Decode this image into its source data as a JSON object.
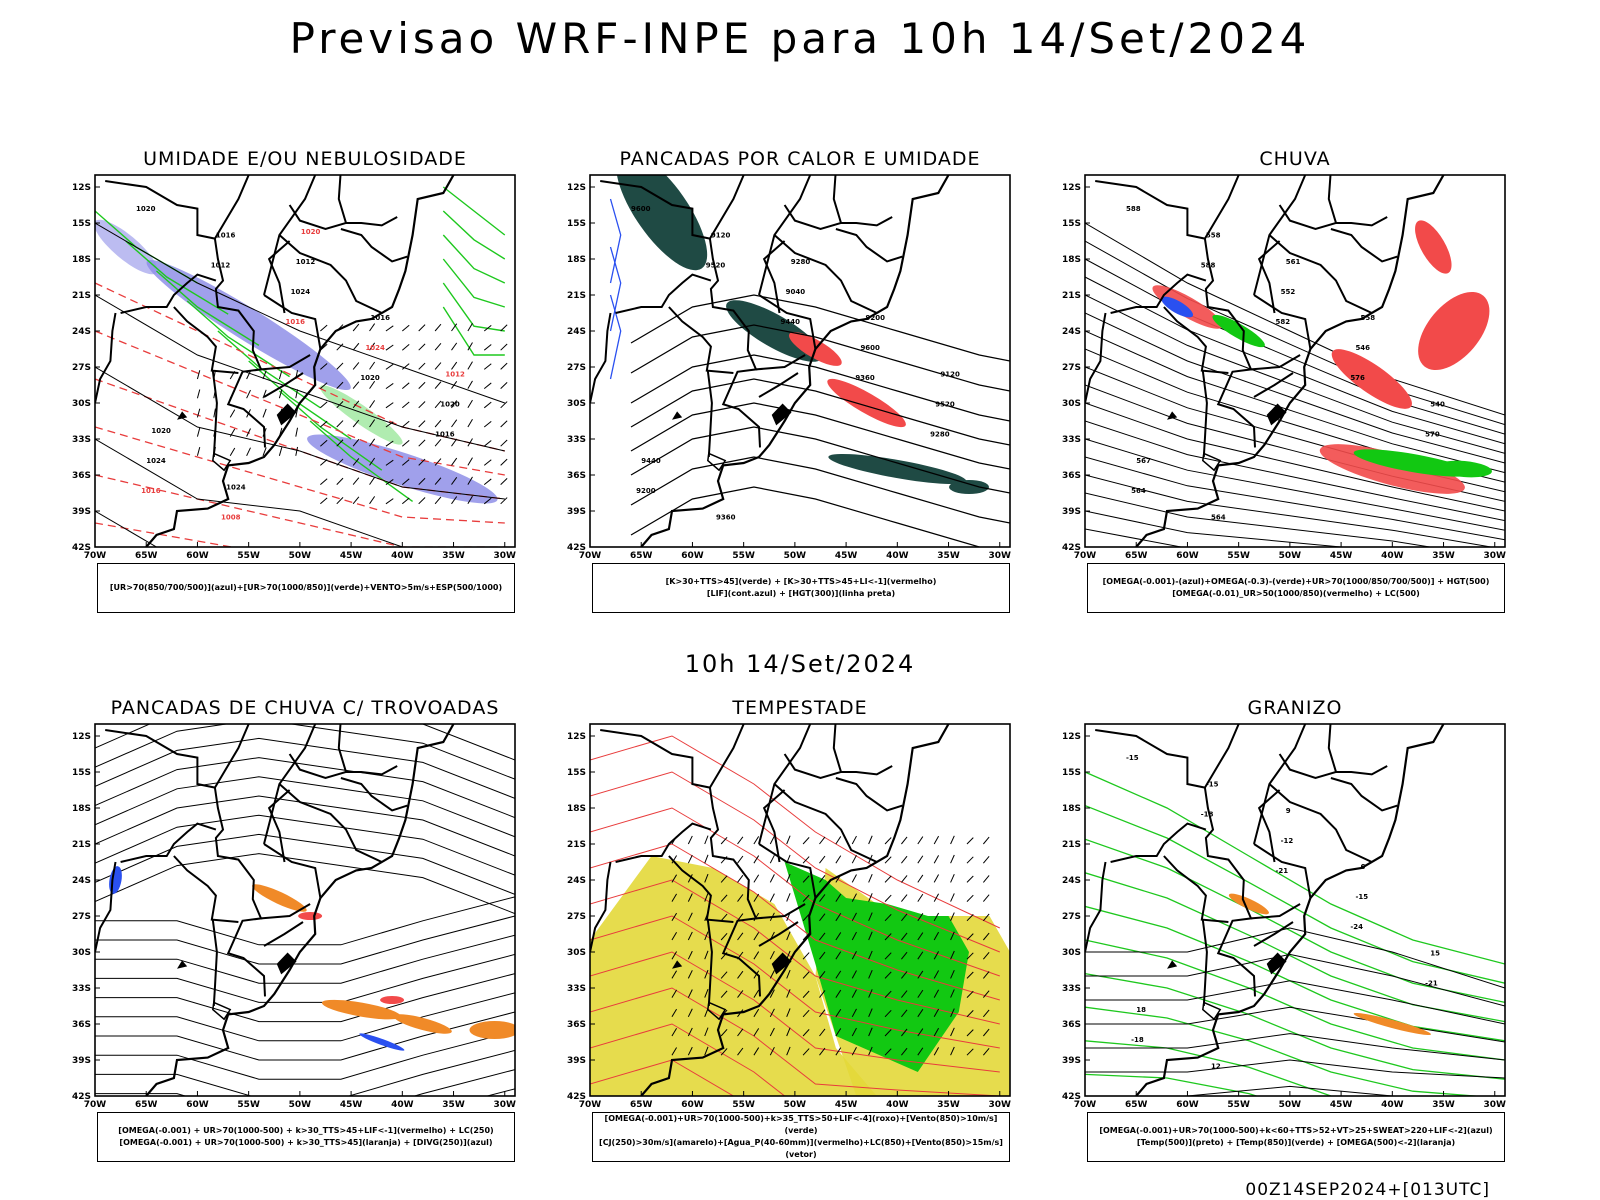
{
  "header": {
    "title": "Previsao WRF-INPE  para 10h 14/Set/2024"
  },
  "mid_label": "10h 14/Set/2024",
  "footer": "00Z14SEP2024+[013UTC]",
  "axes": {
    "lat_labels": [
      "12S",
      "15S",
      "18S",
      "21S",
      "24S",
      "27S",
      "30S",
      "33S",
      "36S",
      "39S",
      "42S"
    ],
    "lon_labels": [
      "70W",
      "65W",
      "60W",
      "55W",
      "50W",
      "45W",
      "40W",
      "35W",
      "30W"
    ]
  },
  "colors": {
    "blue_humidity": "#8f8fe8",
    "green_contour": "#1ec81e",
    "red_contour": "#e83c3c",
    "dark_teal": "#1f4a44",
    "red_fill": "#f24a4a",
    "green_fill": "#12c812",
    "blue_fill": "#2a50f0",
    "orange_fill": "#f08a28",
    "yellow_fill": "#e3d83a"
  },
  "panels": [
    {
      "title": "UMIDADE E/OU NEBULOSIDADE",
      "legend": [
        "[UR>70(850/700/500)](azul)+[UR>70(1000/850)](verde)+VENTO>5m/s+ESP(500/1000)"
      ],
      "contour_labels": [
        "1020",
        "1012",
        "1016",
        "1020",
        "1016",
        "1016",
        "1016",
        "1024",
        "1024",
        "1020",
        "1024",
        "1008",
        "1012",
        "1016",
        "1012",
        "1020",
        "1024",
        "1020"
      ]
    },
    {
      "title": "PANCADAS POR CALOR E UMIDADE",
      "legend": [
        "[K>30+TTS>45](verde)  +  [K>30+TTS>45+LI<-1](vermelho)",
        "[LIF](cont.azul)  +  [HGT(300)](linha preta)"
      ],
      "contour_labels": [
        "9600",
        "9520",
        "9440",
        "9360",
        "9280",
        "9200",
        "9120",
        "9040",
        "9600",
        "9520",
        "9440",
        "9360",
        "9280",
        "9200",
        "9120"
      ]
    },
    {
      "title": "CHUVA",
      "legend": [
        "[OMEGA(-0.001)-(azul)+OMEGA(-0.3)-(verde)+UR>70(1000/850/700/500)]  +  HGT(500)",
        "[OMEGA(-0.01)_UR>50(1000/850)(vermelho)  +  LC(500)"
      ],
      "contour_labels": [
        "588",
        "588",
        "582",
        "576",
        "570",
        "564",
        "558",
        "552",
        "546",
        "540",
        "567",
        "564",
        "561",
        "558"
      ]
    },
    {
      "title": "PANCADAS DE CHUVA C/ TROVOADAS",
      "legend": [
        "[OMEGA(-0.001)  +  UR>70(1000-500)  +  k>30_TTS>45+LIF<-1](vermelho)  +  LC(250)",
        "[OMEGA(-0.001)  +  UR>70(1000-500)  +  k>30_TTS>45](laranja)  +  [DIVG(250)](azul)"
      ],
      "contour_labels": []
    },
    {
      "title": "TEMPESTADE",
      "legend": [
        "[OMEGA(-0.001)+UR>70(1000-500)+k>35_TTS>50+LIF<-4](roxo)+[Vento(850)>10m/s](verde)",
        "[CJ(250)>30m/s](amarelo)+[Agua_P(40-60mm)](vermelho)+LC(850)+[Vento(850)>15m/s](vetor)"
      ],
      "contour_labels": []
    },
    {
      "title": "GRANIZO",
      "legend": [
        "[OMEGA(-0.001)+UR>70(1000-500)+k<60+TTS>52+VT>25+SWEAT>220+LIF<-2](azul)",
        "[Temp(500)](preto)  +  [Temp(850)](verde)  +  [OMEGA(500)<-2](laranja)"
      ],
      "contour_labels": [
        "-15",
        "-18",
        "-21",
        "-24",
        "-21",
        "-18",
        "-15",
        "-12",
        "-15",
        "15",
        "18",
        "12",
        "9",
        "6"
      ]
    }
  ]
}
